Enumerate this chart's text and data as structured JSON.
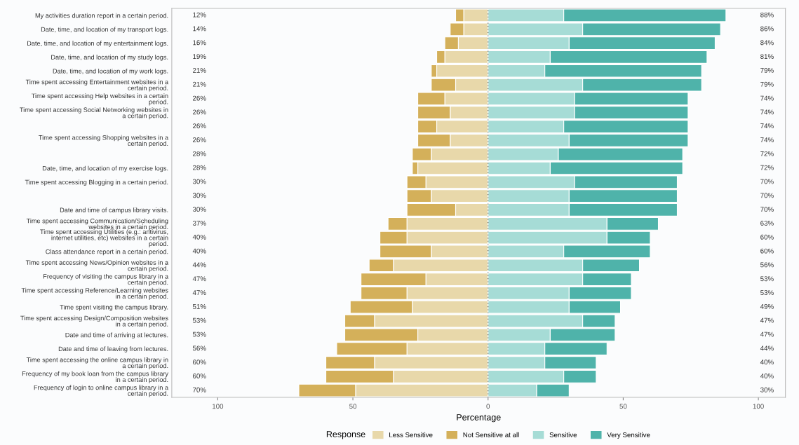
{
  "chart_data": {
    "type": "bar",
    "orientation": "horizontal",
    "stacked": true,
    "xlabel": "Percentage",
    "legend_title": "Response",
    "legend": "bottom",
    "categories": [
      "My activities duration report in a certain period.",
      "Date, time, and location of my transport logs.",
      "Date, time, and location of my entertainment logs.",
      "Date, time, and location of my study logs.",
      "Date, time, and location of my work logs.",
      "Time spent accessing Entertainment websites in a certain period.",
      "Time spent accessing Help websites in a certain period.",
      "Time spent accessing Social Networking websites in a certain period.",
      null,
      "Time spent accessing Shopping websites in a certain period.",
      null,
      "Date, time, and location of my exercise logs.",
      "Time spent accessing Blogging in a certain period.",
      null,
      "Date and time of campus library visits.",
      "Time spent accessing Communication/Scheduling websites in a certain period.",
      "Time spent accessing Utilities (e.g.: antivirus, internet utilities, etc) websites in a certain period.",
      "Class attendance report in a certain period.",
      "Time spent accessing News/Opinion websites in a certain period.",
      "Frequency of visiting the campus library in a certain period.",
      "Time spent accessing Reference/Learning websites in a certain period.",
      "Time spent visiting the campus library.",
      "Time spent accessing Design/Composition websites in a certain period.",
      "Date and time of arriving at lectures.",
      "Date and time of leaving from lectures.",
      "Time spent accessing the online campus library in a certain period.",
      "Frequency of my book loan from the campus library in a certain period.",
      "Frequency of login to online campus library in a certain period."
    ],
    "series": [
      {
        "name": "Less Sensitive",
        "color": "#e8d8aa",
        "values": [
          -9,
          -9,
          -11,
          -16,
          -19,
          -12,
          -16,
          -14,
          -19,
          -14,
          -21,
          -26,
          -23,
          -21,
          -12,
          -30,
          -30,
          -21,
          -35,
          -23,
          -30,
          -28,
          -42,
          -26,
          -30,
          -42,
          -35,
          -49
        ]
      },
      {
        "name": "Not Sensitive at all",
        "color": "#d4b05a",
        "values": [
          -3,
          -5,
          -5,
          -3,
          -2,
          -9,
          -10,
          -12,
          -7,
          -12,
          -7,
          -2,
          -7,
          -9,
          -18,
          -7,
          -10,
          -19,
          -9,
          -24,
          -17,
          -23,
          -11,
          -27,
          -26,
          -18,
          -25,
          -21
        ]
      },
      {
        "name": "Sensitive",
        "color": "#a6dcd6",
        "values": [
          28,
          35,
          30,
          23,
          21,
          35,
          32,
          32,
          28,
          30,
          26,
          23,
          32,
          30,
          30,
          44,
          44,
          28,
          35,
          35,
          30,
          30,
          35,
          23,
          21,
          21,
          28,
          18
        ]
      },
      {
        "name": "Very Sensitive",
        "color": "#4fb3aa",
        "values": [
          60,
          51,
          54,
          58,
          58,
          44,
          42,
          42,
          46,
          44,
          46,
          49,
          38,
          40,
          40,
          19,
          16,
          32,
          21,
          18,
          23,
          19,
          12,
          24,
          23,
          19,
          12,
          12
        ]
      }
    ],
    "totals": [
      [
        "12%",
        "88%"
      ],
      [
        "14%",
        "86%"
      ],
      [
        "16%",
        "84%"
      ],
      [
        "19%",
        "81%"
      ],
      [
        "21%",
        "79%"
      ],
      [
        "21%",
        "79%"
      ],
      [
        "26%",
        "74%"
      ],
      [
        "26%",
        "74%"
      ],
      [
        "26%",
        "74%"
      ],
      [
        "26%",
        "74%"
      ],
      [
        "28%",
        "72%"
      ],
      [
        "28%",
        "72%"
      ],
      [
        "30%",
        "70%"
      ],
      [
        "30%",
        "70%"
      ],
      [
        "30%",
        "70%"
      ],
      [
        "37%",
        "63%"
      ],
      [
        "40%",
        "60%"
      ],
      [
        "40%",
        "60%"
      ],
      [
        "44%",
        "56%"
      ],
      [
        "47%",
        "53%"
      ],
      [
        "47%",
        "53%"
      ],
      [
        "51%",
        "49%"
      ],
      [
        "53%",
        "47%"
      ],
      [
        "53%",
        "47%"
      ],
      [
        "56%",
        "44%"
      ],
      [
        "60%",
        "40%"
      ],
      [
        "60%",
        "40%"
      ],
      [
        "70%",
        "30%"
      ]
    ],
    "xlim": [
      -117,
      110
    ],
    "xticks": [
      {
        "value": -100,
        "label": "100"
      },
      {
        "value": -50,
        "label": "50"
      },
      0,
      50,
      100
    ]
  }
}
